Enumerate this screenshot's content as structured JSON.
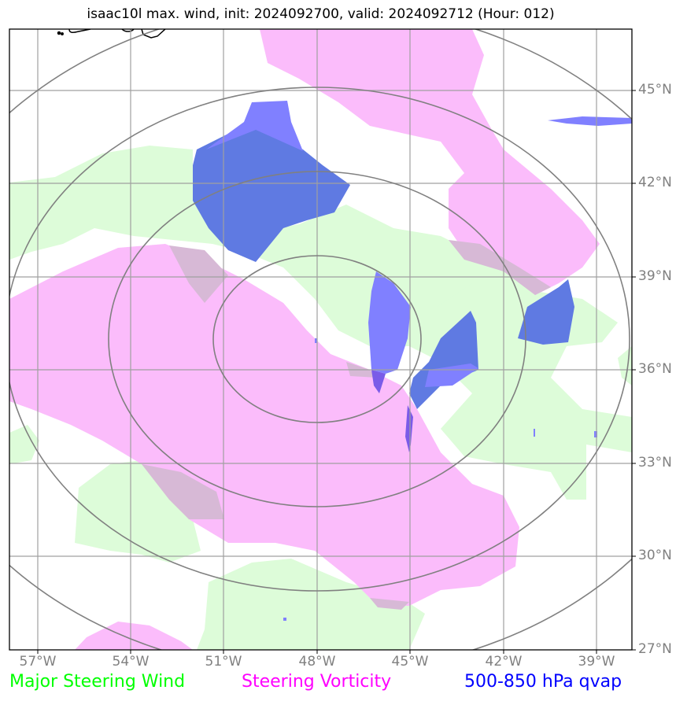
{
  "title": "isaac10l max. wind, init: 2024092700, valid: 2024092712 (Hour: 012)",
  "map": {
    "lon_labels": [
      "57°W",
      "54°W",
      "51°W",
      "48°W",
      "45°W",
      "42°W",
      "39°W"
    ],
    "lat_labels": [
      "45°N",
      "42°N",
      "39°N",
      "36°N",
      "33°N",
      "30°N",
      "27°N"
    ],
    "lon_range": [
      -58,
      -38
    ],
    "lat_range": [
      27,
      47
    ]
  },
  "legend": {
    "wind": "Major Steering Wind",
    "vorticity": "Steering Vorticity",
    "qvap": "500-850 hPa qvap"
  },
  "colors": {
    "wind": "#00ff00",
    "vorticity": "#ff00ff",
    "qvap": "#0000ff",
    "wind_fill": "#ddfcd9",
    "vorticity_fill": "#fbbcfb",
    "qvap_fill": "#8080ff",
    "grid": "#a0a0a0",
    "range_rings": "#808080"
  },
  "range_rings_center": "48°W, 37°N"
}
